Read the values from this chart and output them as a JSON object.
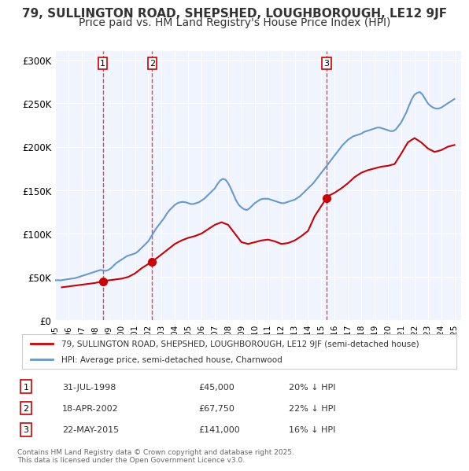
{
  "title": "79, SULLINGTON ROAD, SHEPSHED, LOUGHBOROUGH, LE12 9JF",
  "subtitle": "Price paid vs. HM Land Registry's House Price Index (HPI)",
  "title_fontsize": 11,
  "subtitle_fontsize": 10,
  "background_color": "#ffffff",
  "plot_bg_color": "#f0f4ff",
  "grid_color": "#ffffff",
  "sale_color": "#cc0000",
  "hpi_color": "#6699cc",
  "sale_label": "79, SULLINGTON ROAD, SHEPSHED, LOUGHBOROUGH, LE12 9JF (semi-detached house)",
  "hpi_label": "HPI: Average price, semi-detached house, Charnwood",
  "transactions": [
    {
      "num": 1,
      "date": "31-JUL-1998",
      "price": 45000,
      "pct": "20%",
      "x": 1998.58
    },
    {
      "num": 2,
      "date": "18-APR-2002",
      "price": 67750,
      "pct": "22%",
      "x": 2002.29
    },
    {
      "num": 3,
      "date": "22-MAY-2015",
      "price": 141000,
      "pct": "16%",
      "x": 2015.39
    }
  ],
  "footnote": "Contains HM Land Registry data © Crown copyright and database right 2025.\nThis data is licensed under the Open Government Licence v3.0.",
  "ylim": [
    0,
    310000
  ],
  "yticks": [
    0,
    50000,
    100000,
    150000,
    200000,
    250000,
    300000
  ],
  "ytick_labels": [
    "£0",
    "£50K",
    "£100K",
    "£150K",
    "£200K",
    "£250K",
    "£300K"
  ],
  "hpi_data": {
    "years": [
      1995.0,
      1995.1,
      1995.2,
      1995.3,
      1995.4,
      1995.5,
      1995.6,
      1995.7,
      1995.8,
      1995.9,
      1996.0,
      1996.1,
      1996.2,
      1996.3,
      1996.4,
      1996.5,
      1996.6,
      1996.7,
      1996.8,
      1996.9,
      1997.0,
      1997.2,
      1997.4,
      1997.6,
      1997.8,
      1998.0,
      1998.2,
      1998.4,
      1998.6,
      1998.8,
      1999.0,
      1999.2,
      1999.4,
      1999.6,
      1999.8,
      2000.0,
      2000.2,
      2000.4,
      2000.6,
      2000.8,
      2001.0,
      2001.2,
      2001.4,
      2001.6,
      2001.8,
      2002.0,
      2002.2,
      2002.4,
      2002.6,
      2002.8,
      2003.0,
      2003.2,
      2003.4,
      2003.6,
      2003.8,
      2004.0,
      2004.2,
      2004.4,
      2004.6,
      2004.8,
      2005.0,
      2005.2,
      2005.4,
      2005.6,
      2005.8,
      2006.0,
      2006.2,
      2006.4,
      2006.6,
      2006.8,
      2007.0,
      2007.2,
      2007.4,
      2007.6,
      2007.8,
      2008.0,
      2008.2,
      2008.4,
      2008.6,
      2008.8,
      2009.0,
      2009.2,
      2009.4,
      2009.6,
      2009.8,
      2010.0,
      2010.2,
      2010.4,
      2010.6,
      2010.8,
      2011.0,
      2011.2,
      2011.4,
      2011.6,
      2011.8,
      2012.0,
      2012.2,
      2012.4,
      2012.6,
      2012.8,
      2013.0,
      2013.2,
      2013.4,
      2013.6,
      2013.8,
      2014.0,
      2014.2,
      2014.4,
      2014.6,
      2014.8,
      2015.0,
      2015.2,
      2015.4,
      2015.6,
      2015.8,
      2016.0,
      2016.2,
      2016.4,
      2016.6,
      2016.8,
      2017.0,
      2017.2,
      2017.4,
      2017.6,
      2017.8,
      2018.0,
      2018.2,
      2018.4,
      2018.6,
      2018.8,
      2019.0,
      2019.2,
      2019.4,
      2019.6,
      2019.8,
      2020.0,
      2020.2,
      2020.4,
      2020.6,
      2020.8,
      2021.0,
      2021.2,
      2021.4,
      2021.6,
      2021.8,
      2022.0,
      2022.2,
      2022.4,
      2022.6,
      2022.8,
      2023.0,
      2023.2,
      2023.4,
      2023.6,
      2023.8,
      2024.0,
      2024.2,
      2024.4,
      2024.6,
      2024.8,
      2025.0
    ],
    "values": [
      46000,
      46200,
      46300,
      46100,
      46000,
      46200,
      46500,
      46800,
      47000,
      47200,
      47500,
      47800,
      48000,
      48200,
      48400,
      48600,
      49000,
      49500,
      50000,
      50500,
      51000,
      52000,
      53000,
      54000,
      55000,
      56000,
      57000,
      58000,
      57500,
      57000,
      58000,
      60000,
      63000,
      66000,
      68000,
      70000,
      72000,
      74000,
      75000,
      76000,
      77000,
      79000,
      82000,
      85000,
      88000,
      91000,
      96000,
      101000,
      106000,
      110000,
      114000,
      118000,
      123000,
      127000,
      130000,
      133000,
      135000,
      136000,
      136500,
      136000,
      135000,
      134000,
      134000,
      135000,
      136000,
      138000,
      140000,
      143000,
      146000,
      149000,
      152000,
      157000,
      161000,
      163000,
      162000,
      158000,
      152000,
      145000,
      138000,
      133000,
      130000,
      128000,
      127000,
      129000,
      132000,
      135000,
      137000,
      139000,
      140000,
      140000,
      140000,
      139000,
      138000,
      137000,
      136000,
      135000,
      135000,
      136000,
      137000,
      138000,
      139000,
      141000,
      143000,
      146000,
      149000,
      152000,
      155000,
      158000,
      162000,
      166000,
      170000,
      174000,
      178000,
      182000,
      186000,
      190000,
      194000,
      198000,
      202000,
      205000,
      208000,
      210000,
      212000,
      213000,
      214000,
      215000,
      217000,
      218000,
      219000,
      220000,
      221000,
      222000,
      222000,
      221000,
      220000,
      219000,
      218000,
      218000,
      220000,
      224000,
      228000,
      234000,
      240000,
      248000,
      255000,
      260000,
      262000,
      263000,
      260000,
      255000,
      250000,
      247000,
      245000,
      244000,
      244000,
      245000,
      247000,
      249000,
      251000,
      253000,
      255000
    ]
  },
  "sale_data": {
    "years": [
      1995.5,
      1996.0,
      1996.5,
      1997.0,
      1997.5,
      1998.0,
      1998.58,
      1999.0,
      1999.5,
      2000.0,
      2000.5,
      2001.0,
      2001.5,
      2002.29,
      2002.5,
      2003.0,
      2003.5,
      2004.0,
      2004.5,
      2005.0,
      2005.5,
      2006.0,
      2006.5,
      2007.0,
      2007.5,
      2008.0,
      2008.5,
      2009.0,
      2009.5,
      2010.0,
      2010.5,
      2011.0,
      2011.5,
      2012.0,
      2012.5,
      2013.0,
      2013.5,
      2014.0,
      2014.5,
      2015.39,
      2015.5,
      2016.0,
      2016.5,
      2017.0,
      2017.5,
      2018.0,
      2018.5,
      2019.0,
      2019.5,
      2020.0,
      2020.5,
      2021.0,
      2021.5,
      2022.0,
      2022.5,
      2023.0,
      2023.5,
      2024.0,
      2024.5,
      2025.0
    ],
    "values": [
      38000,
      39000,
      40000,
      41000,
      42000,
      43000,
      45000,
      46000,
      47000,
      48000,
      50000,
      54000,
      60000,
      67750,
      70000,
      76000,
      82000,
      88000,
      92000,
      95000,
      97000,
      100000,
      105000,
      110000,
      113000,
      110000,
      100000,
      90000,
      88000,
      90000,
      92000,
      93000,
      91000,
      88000,
      89000,
      92000,
      97000,
      103000,
      120000,
      141000,
      143000,
      147000,
      152000,
      158000,
      165000,
      170000,
      173000,
      175000,
      177000,
      178000,
      180000,
      192000,
      205000,
      210000,
      205000,
      198000,
      194000,
      196000,
      200000,
      202000
    ]
  }
}
